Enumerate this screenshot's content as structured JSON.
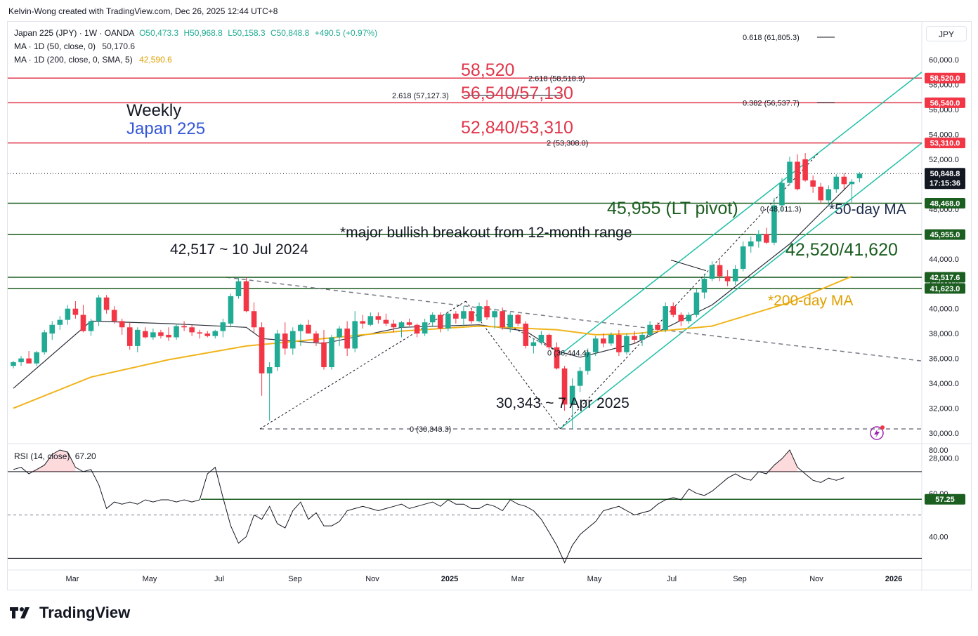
{
  "header": {
    "attribution": "Kelvin-Wong created with TradingView.com, Dec 26, 2025 12:44 UTC+8"
  },
  "legend": {
    "symbol": "Japan 225 (JPY) · 1W · OANDA",
    "open": "O50,473.3",
    "high": "H50,968.8",
    "low": "L50,158.3",
    "close": "C50,848.8",
    "change": "+490.5 (+0.97%)",
    "ma50_label": "MA · 1D (50, close, 0)",
    "ma50_value": "50,170.6",
    "ma200_label": "MA · 1D (200, close, 0, SMA, 5)",
    "ma200_value": "42,590.6"
  },
  "currency_button": "JPY",
  "rsi_legend": {
    "label": "RSI (14, close)",
    "value": "67.20"
  },
  "brand": "TradingView",
  "colors": {
    "up": "#22ab94",
    "down": "#f23645",
    "ma50": "#2a2e39",
    "ma200": "#f0b41b",
    "resistance": "#e0364a",
    "support": "#1b5e20",
    "channel": "#1ebfa6",
    "label_blue": "#3557d6"
  },
  "chart_data": {
    "type": "candlestick",
    "y_axis_labels": [
      "60,000.0",
      "58,000.0",
      "56,000.0",
      "54,000.0",
      "52,000.0",
      "50,000.0",
      "48,000.0",
      "46,000.0",
      "44,000.0",
      "42,000.0",
      "40,000.0",
      "38,000.0",
      "36,000.0",
      "34,000.0",
      "32,000.0",
      "30,000.0",
      "28,000.0"
    ],
    "x_axis_labels": [
      "Mar",
      "May",
      "Jul",
      "Sep",
      "Nov",
      "2025",
      "Mar",
      "May",
      "Jul",
      "Sep",
      "Nov",
      "2026"
    ],
    "ylim": [
      26500,
      61700
    ],
    "price_tags": [
      {
        "text": "58,520.0",
        "value": 58520,
        "color": "#f23645"
      },
      {
        "text": "56,540.0",
        "value": 56540,
        "color": "#f23645"
      },
      {
        "text": "53,310.0",
        "value": 53310,
        "color": "#f23645"
      },
      {
        "text": "50,848.8",
        "value": 50848.8,
        "color": "#131722",
        "sub": "17:15:36"
      },
      {
        "text": "48,468.0",
        "value": 48468,
        "color": "#1b5e20"
      },
      {
        "text": "45,955.0",
        "value": 45955,
        "color": "#1b5e20"
      },
      {
        "text": "42,517.6",
        "value": 42517.6,
        "color": "#1b5e20"
      },
      {
        "text": "41,623.0",
        "value": 41623,
        "color": "#1b5e20"
      }
    ],
    "horizontal_levels": [
      {
        "value": 58520,
        "label": "58,520",
        "color": "#e0364a"
      },
      {
        "value": 56540,
        "label": "56,540/57,130",
        "color": "#e0364a"
      },
      {
        "value": 53310,
        "label": "52,840/53,310",
        "color": "#e0364a"
      },
      {
        "value": 48468,
        "label": "",
        "color": "#1b5e20"
      },
      {
        "value": 45955,
        "label": "45,955 (LT pivot)",
        "color": "#1b5e20"
      },
      {
        "value": 42517.6,
        "label": "42,520/41,620",
        "color": "#1b5e20"
      },
      {
        "value": 41623,
        "label": "",
        "color": "#1b5e20"
      }
    ],
    "fib_labels": [
      {
        "text": "0.618 (61,805.3)",
        "value": 61805.3
      },
      {
        "text": "2.618 (58,518.9)",
        "value": 58518.9
      },
      {
        "text": "2.618 (57,127.3)",
        "value": 57127.3
      },
      {
        "text": "0.382 (56,537.7)",
        "value": 56537.7
      },
      {
        "text": "2 (53,308.0)",
        "value": 53308
      },
      {
        "text": "0 (48,011.3)",
        "value": 48011.3
      },
      {
        "text": "0 (36,444.4)",
        "value": 36444.4
      },
      {
        "text": "0 (30,343.3)",
        "value": 30343.3
      }
    ],
    "annotations": {
      "title1": "Weekly",
      "title2": "Japan 225",
      "breakout": "*major bullish breakout from 12-month range",
      "high_2024": "42,517 ~ 10 Jul 2024",
      "low_2025": "30,343 ~ 7 Apr 2025",
      "ma50": "*50-day MA",
      "ma200": "*200-day MA"
    },
    "candles": [
      [
        35400,
        35800,
        35200,
        35700
      ],
      [
        35700,
        36200,
        35400,
        36000
      ],
      [
        36000,
        36600,
        35600,
        35600
      ],
      [
        35600,
        36600,
        35400,
        36500
      ],
      [
        36500,
        38300,
        36300,
        38100
      ],
      [
        38000,
        39000,
        37500,
        38700
      ],
      [
        38700,
        39400,
        38300,
        39100
      ],
      [
        39100,
        40300,
        38700,
        40000
      ],
      [
        40000,
        40600,
        39200,
        39500
      ],
      [
        39500,
        40300,
        38100,
        38200
      ],
      [
        38200,
        39200,
        37800,
        39000
      ],
      [
        39000,
        41100,
        38600,
        40900
      ],
      [
        40900,
        41100,
        39600,
        39900
      ],
      [
        39900,
        40200,
        38800,
        39000
      ],
      [
        39000,
        39200,
        37900,
        38500
      ],
      [
        38500,
        38900,
        36700,
        37000
      ],
      [
        37000,
        38500,
        36500,
        38300
      ],
      [
        38200,
        38500,
        37600,
        37700
      ],
      [
        37700,
        38400,
        37500,
        38100
      ],
      [
        38100,
        38300,
        37600,
        37800
      ],
      [
        37900,
        38500,
        37400,
        37700
      ],
      [
        37700,
        38800,
        37500,
        38600
      ],
      [
        38600,
        39000,
        38200,
        38500
      ],
      [
        38500,
        38700,
        37800,
        38100
      ],
      [
        38100,
        38300,
        37600,
        38000
      ],
      [
        38000,
        38200,
        37700,
        37800
      ],
      [
        37800,
        38300,
        37600,
        38200
      ],
      [
        38200,
        39200,
        37700,
        38900
      ],
      [
        38800,
        41200,
        38500,
        41000
      ],
      [
        41000,
        42500,
        40800,
        42200
      ],
      [
        42200,
        42500,
        39700,
        39800
      ],
      [
        39800,
        40500,
        38100,
        38500
      ],
      [
        38500,
        38900,
        33000,
        34800
      ],
      [
        34800,
        35700,
        31000,
        35300
      ],
      [
        35300,
        38300,
        35000,
        38000
      ],
      [
        38000,
        38900,
        36300,
        36800
      ],
      [
        36800,
        38500,
        36300,
        38200
      ],
      [
        38200,
        38800,
        37000,
        38700
      ],
      [
        38700,
        39100,
        38000,
        38000
      ],
      [
        38000,
        38200,
        37000,
        37300
      ],
      [
        37300,
        38300,
        35100,
        35300
      ],
      [
        35300,
        37900,
        35100,
        37700
      ],
      [
        37700,
        38600,
        37000,
        38400
      ],
      [
        38400,
        39000,
        36200,
        36800
      ],
      [
        36800,
        39800,
        36500,
        39000
      ],
      [
        39000,
        39500,
        38400,
        38800
      ],
      [
        38700,
        39700,
        38600,
        39400
      ],
      [
        39400,
        39700,
        38800,
        39100
      ],
      [
        39100,
        39600,
        38600,
        38800
      ],
      [
        38800,
        39100,
        38100,
        38500
      ],
      [
        38500,
        39000,
        37700,
        38900
      ],
      [
        38900,
        39200,
        38600,
        38700
      ],
      [
        38700,
        38800,
        37700,
        38000
      ],
      [
        38000,
        39200,
        37800,
        38900
      ],
      [
        38900,
        39700,
        38600,
        39500
      ],
      [
        39500,
        39700,
        38100,
        38400
      ],
      [
        38400,
        39800,
        38200,
        39600
      ],
      [
        39600,
        39800,
        38800,
        39200
      ],
      [
        39200,
        40200,
        38600,
        39800
      ],
      [
        39800,
        39900,
        38800,
        39000
      ],
      [
        39000,
        40500,
        38900,
        40200
      ],
      [
        40200,
        40700,
        39100,
        39300
      ],
      [
        39300,
        40000,
        38400,
        39800
      ],
      [
        39800,
        40100,
        38300,
        38500
      ],
      [
        38500,
        39700,
        38100,
        39500
      ],
      [
        39500,
        39600,
        38600,
        38800
      ],
      [
        38800,
        39000,
        36800,
        37000
      ],
      [
        37000,
        37600,
        36400,
        37300
      ],
      [
        37300,
        38200,
        37100,
        37900
      ],
      [
        37900,
        38000,
        36700,
        36900
      ],
      [
        36900,
        37300,
        35100,
        35200
      ],
      [
        35200,
        35400,
        31800,
        32300
      ],
      [
        32300,
        34400,
        30343,
        33800
      ],
      [
        33800,
        35300,
        33300,
        35000
      ],
      [
        35000,
        36800,
        34700,
        36500
      ],
      [
        36500,
        37800,
        36200,
        37600
      ],
      [
        37600,
        38000,
        36900,
        37200
      ],
      [
        37200,
        38100,
        37000,
        37900
      ],
      [
        37900,
        38300,
        36200,
        36500
      ],
      [
        36500,
        38000,
        36300,
        37800
      ],
      [
        37800,
        38200,
        37200,
        37500
      ],
      [
        37500,
        38100,
        37000,
        37900
      ],
      [
        37900,
        39000,
        37700,
        38700
      ],
      [
        38700,
        38900,
        38100,
        38300
      ],
      [
        38300,
        40500,
        38100,
        40200
      ],
      [
        40200,
        40500,
        39300,
        39500
      ],
      [
        39500,
        39700,
        38600,
        39000
      ],
      [
        39000,
        39700,
        38800,
        39500
      ],
      [
        39500,
        41600,
        39300,
        41300
      ],
      [
        41300,
        42800,
        40800,
        42400
      ],
      [
        42400,
        43800,
        42200,
        43500
      ],
      [
        43500,
        43900,
        42200,
        42600
      ],
      [
        42600,
        43100,
        41800,
        42200
      ],
      [
        42200,
        43500,
        41900,
        43200
      ],
      [
        43200,
        45400,
        43000,
        45000
      ],
      [
        45000,
        45800,
        44500,
        45400
      ],
      [
        45400,
        46300,
        44900,
        46000
      ],
      [
        46000,
        46500,
        45200,
        45300
      ],
      [
        45300,
        48900,
        45100,
        48300
      ],
      [
        48300,
        50500,
        47800,
        50100
      ],
      [
        50100,
        52200,
        49900,
        51800
      ],
      [
        51800,
        52400,
        49500,
        49600
      ],
      [
        52000,
        52500,
        50200,
        50300
      ],
      [
        50300,
        50700,
        49300,
        49800
      ],
      [
        49800,
        50100,
        48400,
        48700
      ],
      [
        48700,
        49900,
        48200,
        49600
      ],
      [
        49600,
        50800,
        49300,
        50600
      ],
      [
        50600,
        50900,
        49600,
        50000
      ],
      [
        50000,
        50400,
        48400,
        50200
      ],
      [
        50473.3,
        50968.8,
        50158.3,
        50848.8
      ]
    ],
    "series": [
      {
        "name": "MA · 1D (50, close, 0)",
        "x": [
          0,
          10,
          20,
          30,
          32,
          40,
          50,
          60,
          66,
          70,
          73,
          80,
          90,
          100,
          108
        ],
        "values": [
          33600,
          39000,
          38800,
          38500,
          37600,
          37200,
          38500,
          38700,
          38200,
          36600,
          36100,
          37200,
          40300,
          45200,
          50170.6
        ]
      },
      {
        "name": "MA · 1D (200, close, 0, SMA, 5)",
        "x": [
          0,
          10,
          20,
          30,
          40,
          50,
          60,
          70,
          75,
          80,
          90,
          100,
          108
        ],
        "values": [
          32000,
          34500,
          35900,
          37000,
          37600,
          38200,
          38600,
          38300,
          37900,
          38000,
          38600,
          40500,
          42590.6
        ]
      }
    ],
    "rsi": {
      "axis_labels": [
        "80.00",
        "60.00",
        "40.00"
      ],
      "ylim": [
        25,
        82
      ],
      "level_tags": [
        {
          "text": "57.25",
          "value": 57.25
        }
      ],
      "values": [
        71,
        72,
        69,
        71,
        73,
        78,
        80,
        79,
        72,
        70,
        71,
        64,
        53,
        56,
        55,
        56,
        55,
        57,
        56,
        57,
        57,
        56,
        57,
        56,
        57,
        69,
        72,
        58,
        45,
        37,
        40,
        50,
        48,
        54,
        46,
        44,
        52,
        56,
        48,
        51,
        45,
        45,
        47,
        52,
        53,
        54,
        53,
        52,
        53,
        54,
        55,
        53,
        54,
        55,
        56,
        54,
        57,
        55,
        55,
        53,
        53,
        55,
        54,
        52,
        57,
        55,
        54,
        52,
        48,
        42,
        36,
        28,
        36,
        41,
        44,
        47,
        52,
        53,
        54,
        52,
        50,
        51,
        52,
        55,
        57,
        58,
        57,
        62,
        60,
        59,
        61,
        64,
        67,
        69,
        67,
        66,
        70,
        69,
        73,
        76,
        80,
        72,
        69,
        66,
        65,
        67,
        66,
        67.2
      ]
    }
  }
}
